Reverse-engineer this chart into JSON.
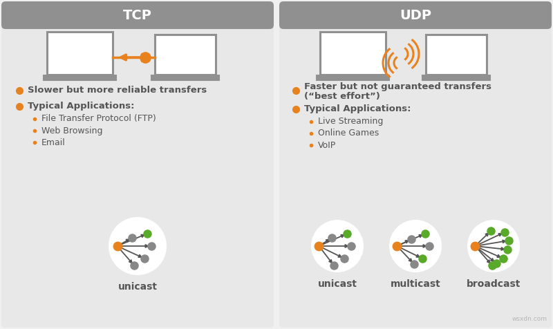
{
  "bg_color": "#f0f0f0",
  "panel_color": "#e8e8e8",
  "header_bg": "#888888",
  "orange": "#e8821e",
  "green": "#5aaa2a",
  "dark_gray": "#555555",
  "mid_gray": "#888888",
  "light_gray": "#aaaaaa",
  "title_tcp": "TCP",
  "title_udp": "UDP",
  "tcp_bullet1": "Slower but more reliable transfers",
  "tcp_bullet2": "Typical Applications:",
  "tcp_sub1": "File Transfer Protocol (FTP)",
  "tcp_sub2": "Web Browsing",
  "tcp_sub3": "Email",
  "udp_bullet1a": "Faster but not guaranteed transfers",
  "udp_bullet1b": "(“best effort”)",
  "udp_bullet2": "Typical Applications:",
  "udp_sub1": "Live Streaming",
  "udp_sub2": "Online Games",
  "udp_sub3": "VoIP",
  "tcp_cast": "unicast",
  "udp_cast1": "unicast",
  "udp_cast2": "multicast",
  "udp_cast3": "broadcast",
  "watermark": "wsxdn.com"
}
